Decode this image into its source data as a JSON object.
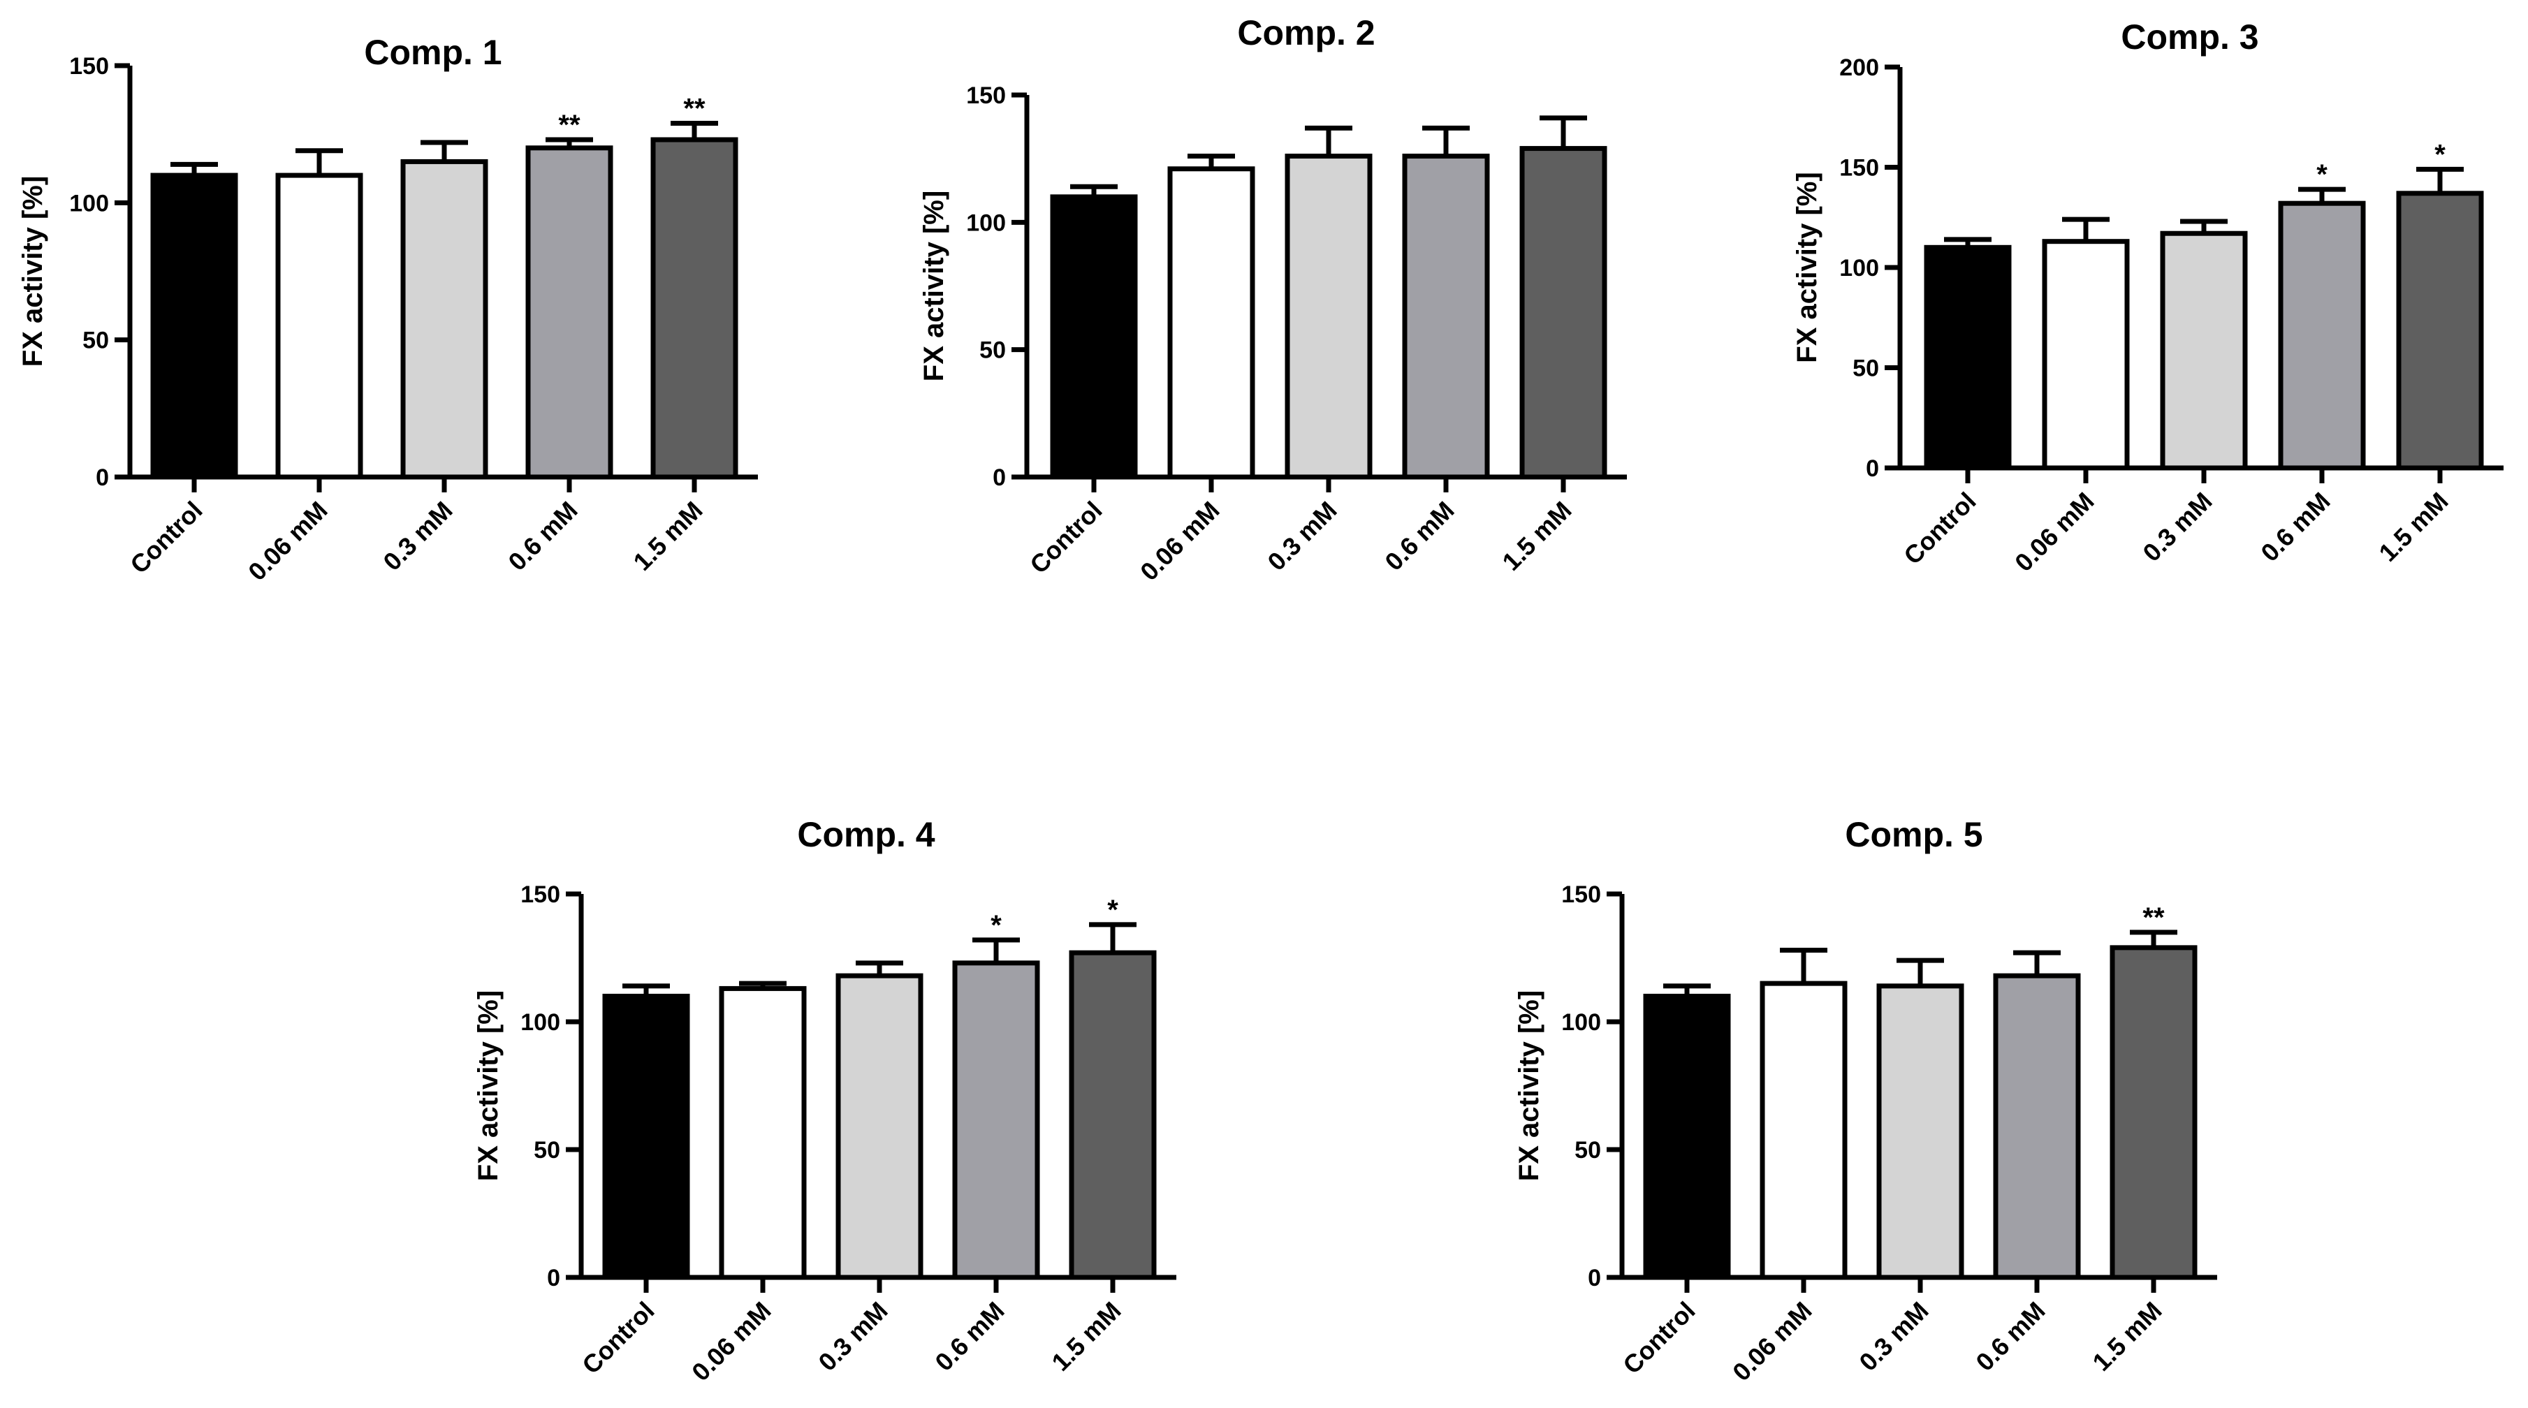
{
  "chart_data": [
    {
      "type": "bar",
      "title": "Comp. 1",
      "ylabel": "FX activity [%]",
      "xlabel": "",
      "categories": [
        "Control",
        "0.06 mM",
        "0.3 mM",
        "0.6 mM",
        "1.5 mM"
      ],
      "values": [
        110,
        110,
        115,
        120,
        123
      ],
      "errors": [
        4,
        9,
        7,
        3,
        6
      ],
      "annotations": [
        "",
        "",
        "",
        "**",
        "**"
      ],
      "ylim": [
        0,
        150
      ],
      "yticks": [
        "0",
        "50",
        "100",
        "150"
      ],
      "colors": [
        "#000000",
        "#ffffff",
        "#d4d4d4",
        "#a0a0a6",
        "#5f5f5f"
      ]
    },
    {
      "type": "bar",
      "title": "Comp. 2",
      "ylabel": "FX activity [%]",
      "xlabel": "",
      "categories": [
        "Control",
        "0.06 mM",
        "0.3 mM",
        "0.6 mM",
        "1.5 mM"
      ],
      "values": [
        110,
        121,
        126,
        126,
        129
      ],
      "errors": [
        4,
        5,
        11,
        11,
        12
      ],
      "annotations": [
        "",
        "",
        "",
        "",
        ""
      ],
      "ylim": [
        0,
        150
      ],
      "yticks": [
        "0",
        "50",
        "100",
        "150"
      ],
      "colors": [
        "#000000",
        "#ffffff",
        "#d4d4d4",
        "#a0a0a6",
        "#5f5f5f"
      ]
    },
    {
      "type": "bar",
      "title": "Comp. 3",
      "ylabel": "FX activity [%]",
      "xlabel": "",
      "categories": [
        "Control",
        "0.06 mM",
        "0.3 mM",
        "0.6 mM",
        "1.5 mM"
      ],
      "values": [
        110,
        113,
        117,
        132,
        137
      ],
      "errors": [
        4,
        11,
        6,
        7,
        12
      ],
      "annotations": [
        "",
        "",
        "",
        "*",
        "*"
      ],
      "ylim": [
        0,
        200
      ],
      "yticks": [
        "0",
        "50",
        "100",
        "150",
        "200"
      ],
      "colors": [
        "#000000",
        "#ffffff",
        "#d4d4d4",
        "#a0a0a6",
        "#5f5f5f"
      ]
    },
    {
      "type": "bar",
      "title": "Comp. 4",
      "ylabel": "FX activity [%]",
      "xlabel": "",
      "categories": [
        "Control",
        "0.06 mM",
        "0.3 mM",
        "0.6 mM",
        "1.5 mM"
      ],
      "values": [
        110,
        113,
        118,
        123,
        127
      ],
      "errors": [
        4,
        2,
        5,
        9,
        11
      ],
      "annotations": [
        "",
        "",
        "",
        "*",
        "*"
      ],
      "ylim": [
        0,
        150
      ],
      "yticks": [
        "0",
        "50",
        "100",
        "150"
      ],
      "colors": [
        "#000000",
        "#ffffff",
        "#d4d4d4",
        "#a0a0a6",
        "#5f5f5f"
      ]
    },
    {
      "type": "bar",
      "title": "Comp. 5",
      "ylabel": "FX activity [%]",
      "xlabel": "",
      "categories": [
        "Control",
        "0.06 mM",
        "0.3 mM",
        "0.6 mM",
        "1.5 mM"
      ],
      "values": [
        110,
        115,
        114,
        118,
        129
      ],
      "errors": [
        4,
        13,
        10,
        9,
        6
      ],
      "annotations": [
        "",
        "",
        "",
        "",
        "**"
      ],
      "ylim": [
        0,
        150
      ],
      "yticks": [
        "0",
        "50",
        "100",
        "150"
      ],
      "colors": [
        "#000000",
        "#ffffff",
        "#d4d4d4",
        "#a0a0a6",
        "#5f5f5f"
      ]
    }
  ]
}
